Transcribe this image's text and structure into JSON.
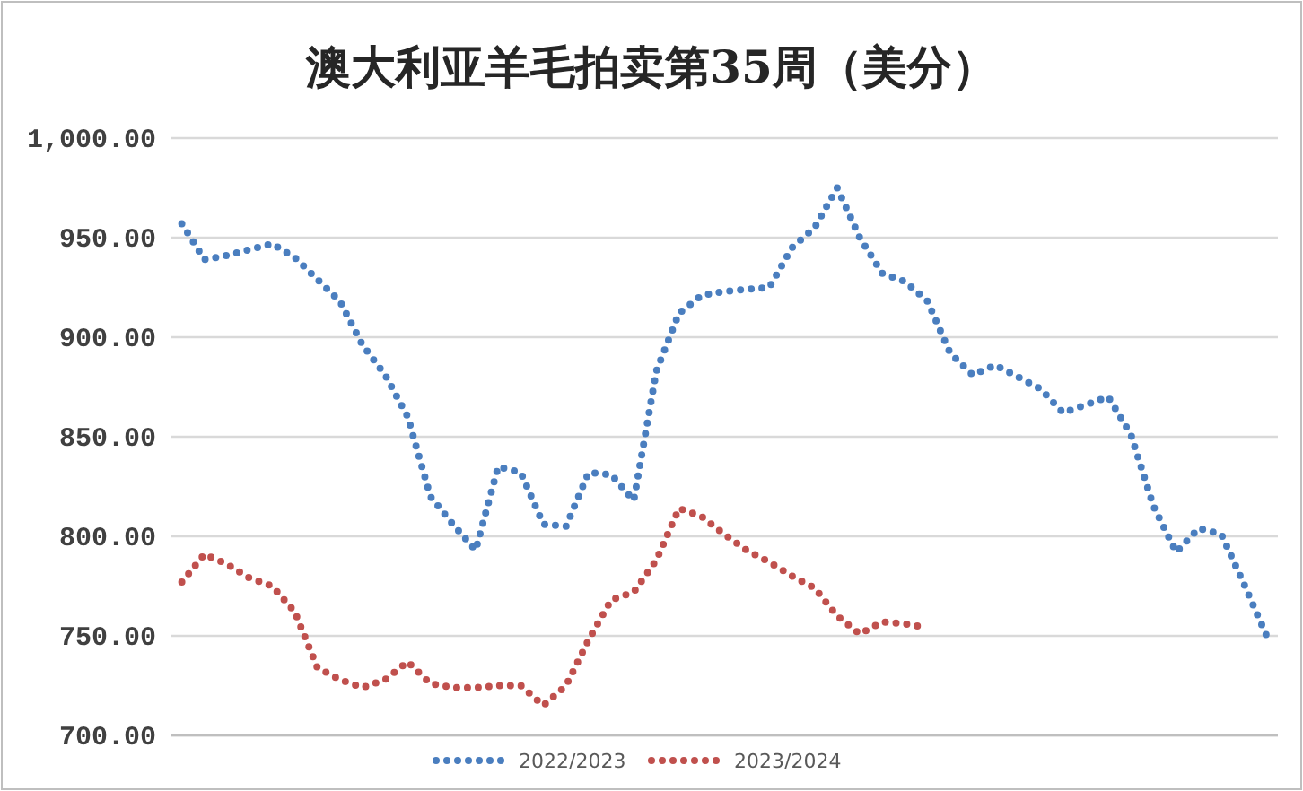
{
  "chart_data": {
    "type": "line",
    "title": "澳大利亚羊毛拍卖第35周（美分）",
    "categories": [
      null,
      null,
      null,
      null,
      null,
      null,
      null,
      null,
      null,
      null,
      null,
      null,
      null,
      null,
      null,
      null,
      null,
      null,
      null,
      null,
      null,
      null,
      null,
      null,
      null,
      null,
      null,
      null,
      null,
      null,
      null,
      null,
      null,
      null,
      null,
      null,
      null,
      null,
      null,
      null,
      null,
      null,
      null,
      null,
      null,
      null,
      null,
      null,
      null
    ],
    "series": [
      {
        "name": "2022/2023",
        "color": "#4a7ebf",
        "values": [
          957,
          939,
          941,
          944,
          947,
          940,
          929,
          918,
          896,
          881,
          860,
          820,
          806,
          793,
          835,
          832,
          806,
          805,
          832,
          831,
          818,
          883,
          912,
          921,
          923,
          924,
          925,
          945,
          955,
          975,
          950,
          932,
          928,
          918,
          892,
          881,
          886,
          880,
          874,
          862,
          866,
          870,
          851,
          815,
          792,
          804,
          801,
          776,
          750
        ]
      },
      {
        "name": "2023/2024",
        "color": "#c0504d",
        "values": [
          777,
          791,
          786,
          779,
          775,
          762,
          734,
          728,
          724,
          728,
          737,
          726,
          724,
          724,
          725,
          725,
          715,
          725,
          748,
          768,
          772,
          788,
          814,
          810,
          801,
          793,
          787,
          780,
          774,
          760,
          751,
          757,
          756,
          754,
          null,
          null,
          null,
          null,
          null,
          null,
          null,
          null,
          null,
          null,
          null,
          null,
          null,
          null,
          null
        ]
      }
    ],
    "ylim": [
      700,
      1000
    ],
    "yticks": [
      {
        "value": 700,
        "label": "700.00"
      },
      {
        "value": 750,
        "label": "750.00"
      },
      {
        "value": 800,
        "label": "800.00"
      },
      {
        "value": 850,
        "label": "850.00"
      },
      {
        "value": 900,
        "label": "900.00"
      },
      {
        "value": 950,
        "label": "950.00"
      },
      {
        "value": 1000,
        "label": "1,000.00"
      }
    ],
    "grid": "y",
    "legend": "bottom",
    "line_style": "dotted",
    "marker": "none"
  }
}
